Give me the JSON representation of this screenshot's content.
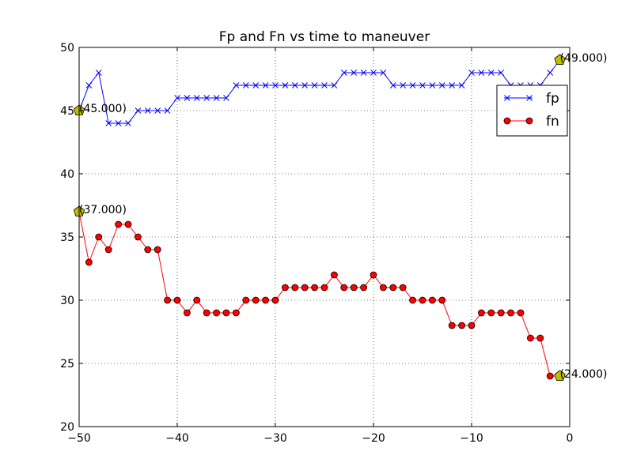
{
  "chart_data": {
    "type": "line",
    "title": "Fp and Fn vs time to maneuver",
    "xlabel": "",
    "ylabel": "",
    "xlim": [
      -50,
      0
    ],
    "ylim": [
      20,
      50
    ],
    "xticks": [
      -50,
      -40,
      -30,
      -20,
      -10,
      0
    ],
    "yticks": [
      20,
      25,
      30,
      35,
      40,
      45,
      50
    ],
    "grid": true,
    "legend_position": "upper-right",
    "x": [
      -50,
      -49,
      -48,
      -47,
      -46,
      -45,
      -44,
      -43,
      -42,
      -41,
      -40,
      -39,
      -38,
      -37,
      -36,
      -35,
      -34,
      -33,
      -32,
      -31,
      -30,
      -29,
      -28,
      -27,
      -26,
      -25,
      -24,
      -23,
      -22,
      -21,
      -20,
      -19,
      -18,
      -17,
      -16,
      -15,
      -14,
      -13,
      -12,
      -11,
      -10,
      -9,
      -8,
      -7,
      -6,
      -5,
      -4,
      -3,
      -2,
      -1
    ],
    "series": [
      {
        "name": "fp",
        "color": "#0000ff",
        "marker": "x",
        "values": [
          45,
          47,
          48,
          44,
          44,
          44,
          45,
          45,
          45,
          45,
          46,
          46,
          46,
          46,
          46,
          46,
          47,
          47,
          47,
          47,
          47,
          47,
          47,
          47,
          47,
          47,
          47,
          48,
          48,
          48,
          48,
          48,
          47,
          47,
          47,
          47,
          47,
          47,
          47,
          47,
          48,
          48,
          48,
          48,
          47,
          47,
          47,
          47,
          48,
          49
        ]
      },
      {
        "name": "fn",
        "color": "#ff0000",
        "marker": "o",
        "values": [
          37,
          33,
          35,
          34,
          36,
          36,
          35,
          34,
          34,
          30,
          30,
          29,
          30,
          29,
          29,
          29,
          29,
          30,
          30,
          30,
          30,
          31,
          31,
          31,
          31,
          31,
          32,
          31,
          31,
          31,
          32,
          31,
          31,
          31,
          30,
          30,
          30,
          30,
          28,
          28,
          28,
          29,
          29,
          29,
          29,
          29,
          27,
          27,
          24,
          24
        ]
      }
    ],
    "annotations": [
      {
        "x": -50,
        "y": 45,
        "text": "(45.000)"
      },
      {
        "x": -1,
        "y": 49,
        "text": "(49.000)"
      },
      {
        "x": -50,
        "y": 37,
        "text": "(37.000)"
      },
      {
        "x": -1,
        "y": 24,
        "text": "(24.000)"
      }
    ],
    "annotation_marker_color": "#bfbf00"
  }
}
